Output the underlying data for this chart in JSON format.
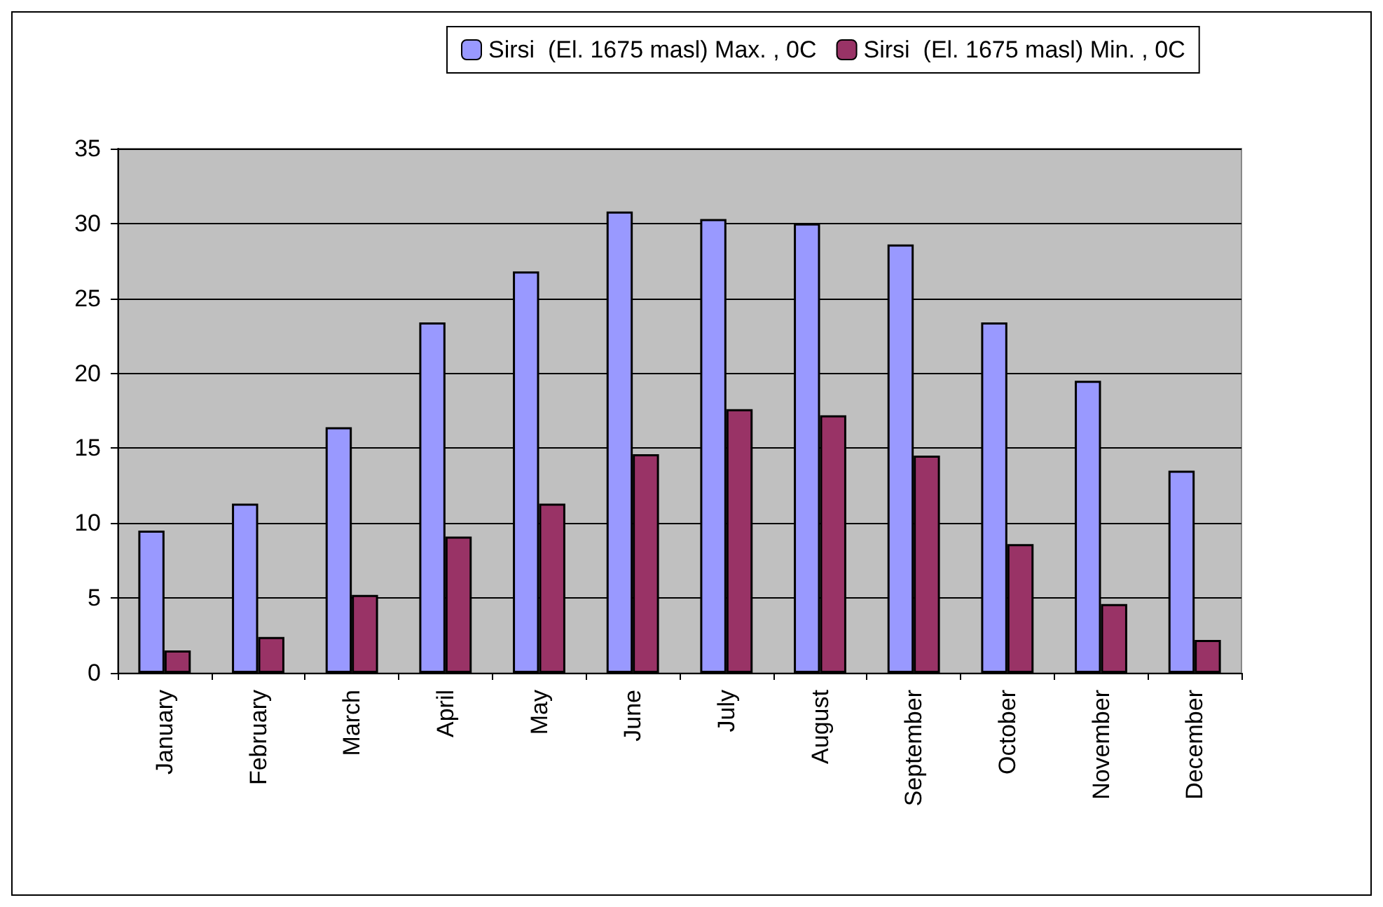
{
  "chart_data": {
    "type": "bar",
    "categories": [
      "January",
      "February",
      "March",
      "April",
      "May",
      "June",
      "July",
      "August",
      "September",
      "October",
      "November",
      "December"
    ],
    "series": [
      {
        "name": "Sirsi  (El. 1675 masl) Max. , 0C",
        "color": "#9999ff",
        "values": [
          9.5,
          11.3,
          16.4,
          23.4,
          26.8,
          30.8,
          30.3,
          30.0,
          28.6,
          23.4,
          19.5,
          13.5
        ]
      },
      {
        "name": "Sirsi  (El. 1675 masl) Min. , 0C",
        "color": "#993366",
        "values": [
          1.5,
          2.4,
          5.2,
          9.1,
          11.3,
          14.6,
          17.6,
          17.2,
          14.5,
          8.6,
          4.6,
          2.2
        ]
      }
    ],
    "ylim": [
      0,
      35
    ],
    "yticks": [
      0,
      5,
      10,
      15,
      20,
      25,
      30,
      35
    ],
    "grid": "y",
    "legend": "top"
  }
}
